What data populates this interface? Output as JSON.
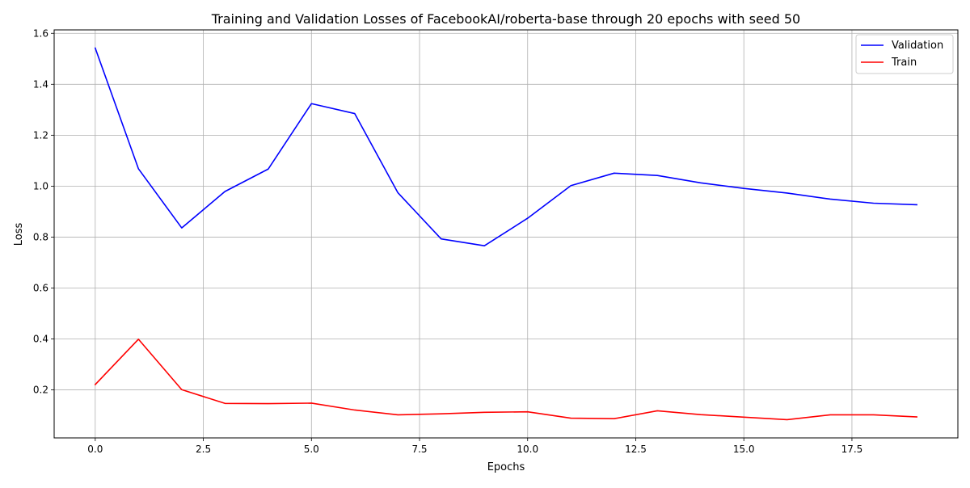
{
  "chart_data": {
    "type": "line",
    "title": "Training and Validation Losses of FacebookAI/roberta-base through 20 epochs with seed 50",
    "xlabel": "Epochs",
    "ylabel": "Loss",
    "xlim": [
      -0.95,
      19.95
    ],
    "ylim": [
      0.0115,
      1.6135
    ],
    "grid": true,
    "legend_position": "top-right",
    "x_ticks": [
      0.0,
      2.5,
      5.0,
      7.5,
      10.0,
      12.5,
      15.0,
      17.5
    ],
    "x_tick_labels": [
      "0.0",
      "2.5",
      "5.0",
      "7.5",
      "10.0",
      "12.5",
      "15.0",
      "17.5"
    ],
    "y_ticks": [
      0.2,
      0.4,
      0.6,
      0.8,
      1.0,
      1.2,
      1.4,
      1.6
    ],
    "y_tick_labels": [
      "0.2",
      "0.4",
      "0.6",
      "0.8",
      "1.0",
      "1.2",
      "1.4",
      "1.6"
    ],
    "x": [
      0,
      1,
      2,
      3,
      4,
      5,
      6,
      7,
      8,
      9,
      10,
      11,
      12,
      13,
      14,
      15,
      16,
      17,
      18,
      19
    ],
    "series": [
      {
        "name": "Validation",
        "color": "#0000ff",
        "values": [
          1.542,
          1.068,
          0.836,
          0.979,
          1.067,
          1.324,
          1.285,
          0.974,
          0.793,
          0.766,
          0.874,
          1.002,
          1.051,
          1.042,
          1.013,
          0.991,
          0.973,
          0.949,
          0.933,
          0.927
        ]
      },
      {
        "name": "Train",
        "color": "#ff0000",
        "values": [
          0.221,
          0.399,
          0.201,
          0.147,
          0.146,
          0.148,
          0.121,
          0.102,
          0.106,
          0.112,
          0.114,
          0.089,
          0.087,
          0.118,
          0.103,
          0.093,
          0.083,
          0.102,
          0.102,
          0.094
        ]
      }
    ]
  }
}
